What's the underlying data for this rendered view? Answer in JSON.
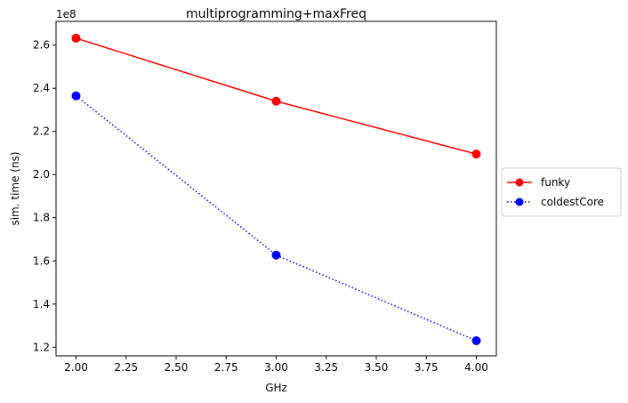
{
  "chart_data": {
    "type": "line",
    "title": "multiprogramming+maxFreq",
    "xlabel": "GHz",
    "ylabel": "sim. time (ns)",
    "y_offset_label": "1e8",
    "xlim": [
      1.9,
      4.1
    ],
    "ylim": [
      1.16,
      2.71
    ],
    "x_ticks": [
      2.0,
      2.25,
      2.5,
      2.75,
      3.0,
      3.25,
      3.5,
      3.75,
      4.0
    ],
    "x_tick_labels": [
      "2.00",
      "2.25",
      "2.50",
      "2.75",
      "3.00",
      "3.25",
      "3.50",
      "3.75",
      "4.00"
    ],
    "y_ticks": [
      1.2,
      1.4,
      1.6,
      1.8,
      2.0,
      2.2,
      2.4,
      2.6
    ],
    "y_tick_labels": [
      "1.2",
      "1.4",
      "1.6",
      "1.8",
      "2.0",
      "2.2",
      "2.4",
      "2.6"
    ],
    "grid": false,
    "legend_position": "right-outside",
    "x": [
      2,
      3,
      4
    ],
    "series": [
      {
        "name": "funky",
        "values": [
          2.632,
          2.34,
          2.095
        ],
        "color": "#ff0000",
        "style": "solid",
        "marker": "circle"
      },
      {
        "name": "coldestCore",
        "values": [
          2.365,
          1.627,
          1.23
        ],
        "color": "#0000ff",
        "style": "dotted",
        "marker": "circle"
      }
    ]
  }
}
